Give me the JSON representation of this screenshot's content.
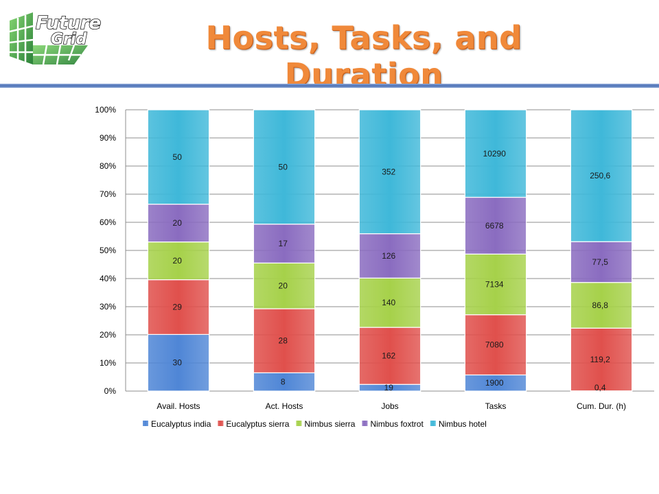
{
  "slide": {
    "title": "Hosts, Tasks, and Duration",
    "logo_text_line1": "Future",
    "logo_text_line2": "Grid"
  },
  "colors": {
    "title": "#f0893a",
    "rule": "#4a6fb5"
  },
  "chart_data": {
    "type": "bar",
    "stacked": "percent",
    "categories": [
      "Avail. Hosts",
      "Act. Hosts",
      "Jobs",
      "Tasks",
      "Cum. Dur. (h)"
    ],
    "series": [
      {
        "name": "Eucalyptus india",
        "color": "#4f86d6",
        "values": [
          30,
          8,
          19,
          1900,
          0.4
        ],
        "labels": [
          "30",
          "8",
          "19",
          "1900",
          "0,4"
        ]
      },
      {
        "name": "Eucalyptus sierra",
        "color": "#e0504c",
        "values": [
          29,
          28,
          162,
          7080,
          119.2
        ],
        "labels": [
          "29",
          "28",
          "162",
          "7080",
          "119,2"
        ]
      },
      {
        "name": "Nimbus sierra",
        "color": "#a6d14a",
        "values": [
          20,
          20,
          140,
          7134,
          86.8
        ],
        "labels": [
          "20",
          "20",
          "140",
          "7134",
          "86,8"
        ]
      },
      {
        "name": "Nimbus foxtrot",
        "color": "#8a6cc0",
        "values": [
          20,
          17,
          126,
          6678,
          77.5
        ],
        "labels": [
          "20",
          "17",
          "126",
          "6678",
          "77,5"
        ]
      },
      {
        "name": "Nimbus hotel",
        "color": "#3fb8d9",
        "values": [
          50,
          50,
          352,
          10290,
          250.6
        ],
        "labels": [
          "50",
          "50",
          "352",
          "10290",
          "250,6"
        ]
      }
    ],
    "y_ticks": [
      "0%",
      "10%",
      "20%",
      "30%",
      "40%",
      "50%",
      "60%",
      "70%",
      "80%",
      "90%",
      "100%"
    ],
    "ylim": [
      0,
      100
    ],
    "grid": true,
    "legend_position": "bottom"
  }
}
